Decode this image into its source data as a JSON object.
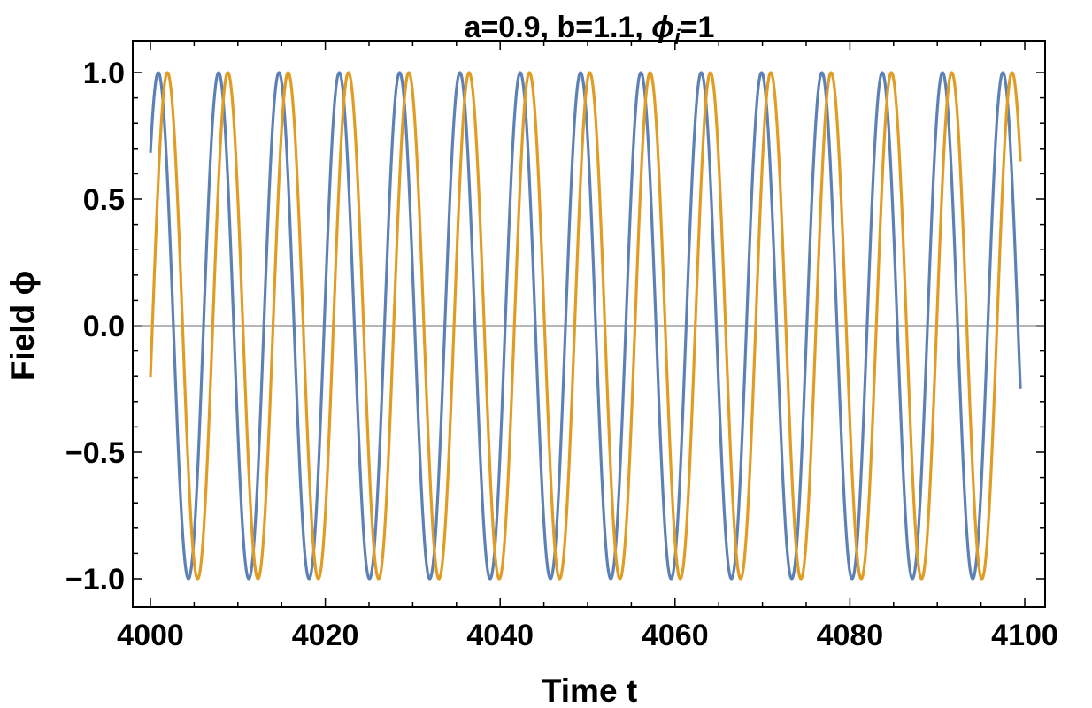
{
  "chart_data": {
    "type": "line",
    "title": {
      "prefix": "a=0.9, b=1.1, ",
      "symbol": "ϕ",
      "subscript": "i",
      "suffix": "=1"
    },
    "xlabel": "Time t",
    "ylabel": "Field ϕ",
    "xlim": [
      4000,
      4100
    ],
    "ylim": [
      -1.0,
      1.0
    ],
    "x_ticks": [
      4000,
      4020,
      4040,
      4060,
      4080,
      4100
    ],
    "x_tick_labels": [
      "4000",
      "4020",
      "4040",
      "4060",
      "4080",
      "4100"
    ],
    "y_ticks": [
      -1.0,
      -0.5,
      0.0,
      0.5,
      1.0
    ],
    "y_tick_labels": [
      "−1.0",
      "−0.5",
      "0.0",
      "0.5",
      "1.0"
    ],
    "x_minor_step": 5,
    "y_minor_step": 0.1,
    "grid": false,
    "legend": "none",
    "series": [
      {
        "color": "#5e81b5",
        "function": "cos",
        "amplitude": 1.0,
        "period": 6.9,
        "peak_at": 4000.9,
        "x_range": [
          4000,
          4099.5
        ]
      },
      {
        "color": "#e19c24",
        "function": "cos",
        "amplitude": 1.0,
        "period": 6.9,
        "peak_at": 4001.95,
        "x_range": [
          4000,
          4099.5
        ]
      }
    ]
  }
}
